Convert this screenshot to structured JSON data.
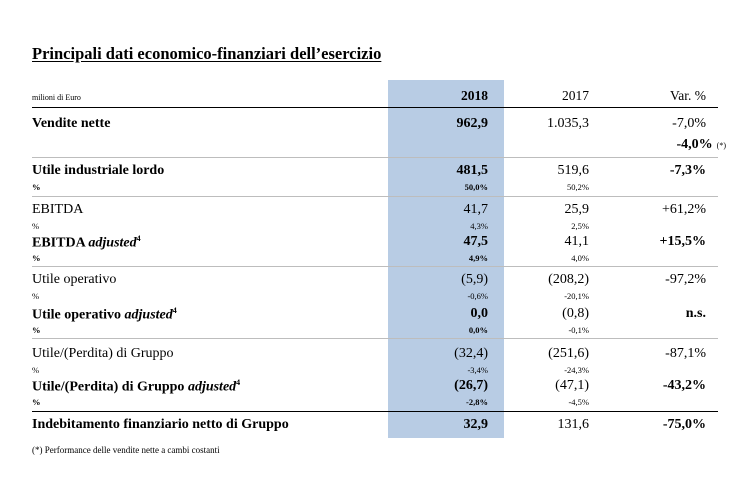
{
  "title": "Principali dati economico-finanziari dell’esercizio",
  "unit_label": "milioni di Euro",
  "columns": {
    "y2018": "2018",
    "y2017": "2017",
    "var": "Var. %"
  },
  "rows": [
    {
      "label": "Vendite nette",
      "v2018": "962,9",
      "v2017": "1.035,3",
      "var": "-7,0%",
      "var2": "-4,0%",
      "var2_note": "(*)"
    },
    {
      "label": "Utile industriale lordo",
      "v2018": "481,5",
      "v2017": "519,6",
      "var": "-7,3%",
      "pct_label": "%",
      "p2018": "50,0%",
      "p2017": "50,2%"
    },
    {
      "label": "EBITDA",
      "v2018": "41,7",
      "v2017": "25,9",
      "var": "+61,2%",
      "pct_label": "%",
      "p2018": "4,3%",
      "p2017": "2,5%"
    },
    {
      "label_main": "EBITDA ",
      "label_italic": "adjusted",
      "label_sup": "4",
      "v2018": "47,5",
      "v2017": "41,1",
      "var": "+15,5%",
      "pct_label": "%",
      "p2018": "4,9%",
      "p2017": "4,0%"
    },
    {
      "label": "Utile operativo",
      "v2018": "(5,9)",
      "v2017": "(208,2)",
      "var": "-97,2%",
      "pct_label": "%",
      "p2018": "-0,6%",
      "p2017": "-20,1%"
    },
    {
      "label_main": "Utile operativo ",
      "label_italic": "adjusted",
      "label_sup": "4",
      "v2018": "0,0",
      "v2017": "(0,8)",
      "var": "n.s.",
      "pct_label": "%",
      "p2018": "0,0%",
      "p2017": "-0,1%"
    },
    {
      "label": "Utile/(Perdita) di Gruppo",
      "v2018": "(32,4)",
      "v2017": "(251,6)",
      "var": "-87,1%",
      "pct_label": "%",
      "p2018": "-3,4%",
      "p2017": "-24,3%"
    },
    {
      "label_main": "Utile/(Perdita) di Gruppo ",
      "label_italic": "adjusted",
      "label_sup": "4",
      "v2018": "(26,7)",
      "v2017": "(47,1)",
      "var": "-43,2%",
      "pct_label": "%",
      "p2018": "-2,8%",
      "p2017": "-4,5%"
    },
    {
      "label": "Indebitamento finanziario netto di Gruppo",
      "v2018": "32,9",
      "v2017": "131,6",
      "var": "-75,0%"
    }
  ],
  "footnote": "(*) Performance delle vendite nette a cambi costanti"
}
